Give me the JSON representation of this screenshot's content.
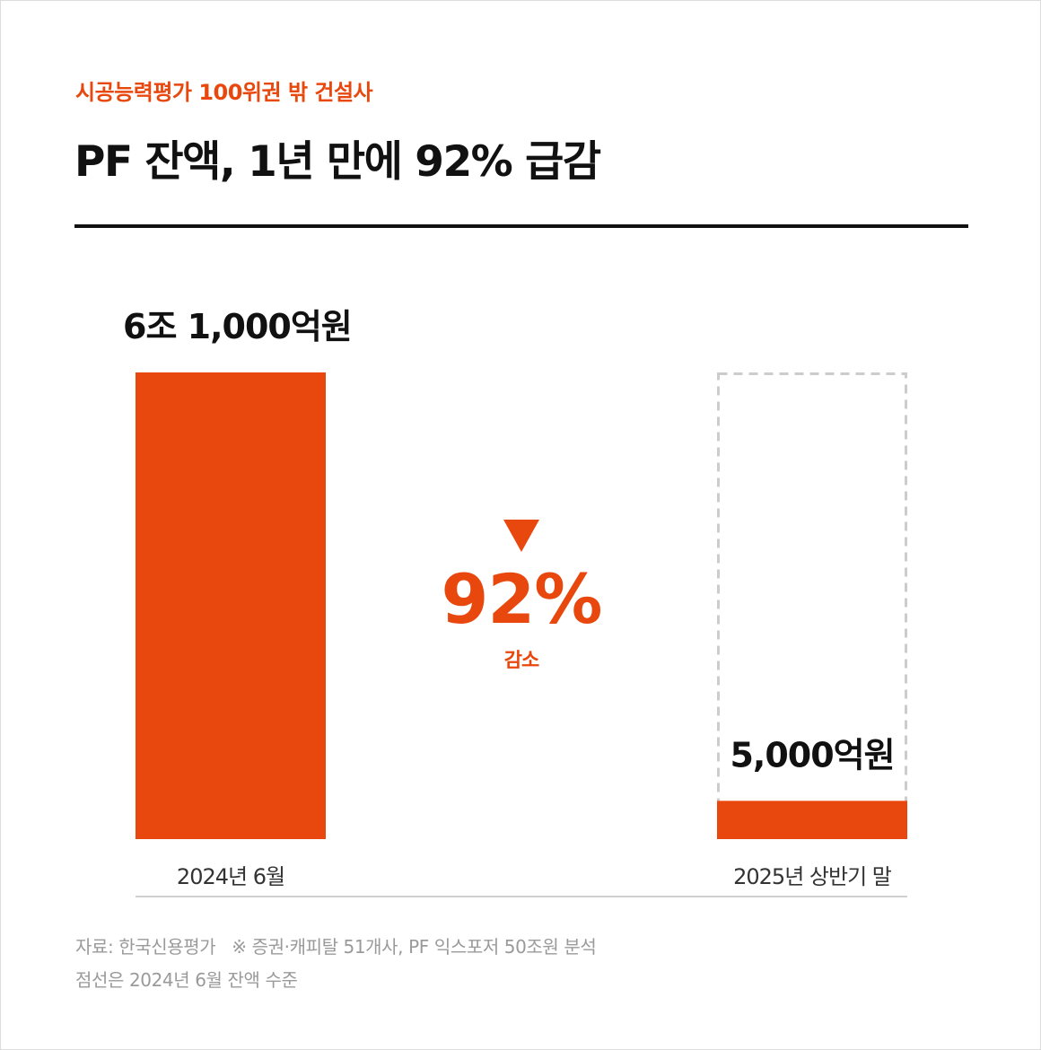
{
  "header": {
    "subtitle": "시공능력평가 100위권 밖 건설사",
    "title": "PF 잔액, 1년 만에 92% 급감"
  },
  "colors": {
    "accent": "#e8480e",
    "text": "#111111",
    "muted": "#9a9a9a",
    "reference_outline": "#cccccc"
  },
  "chart_data": {
    "type": "bar",
    "unit": "억원",
    "categories": [
      "2024년 6월",
      "2025년 상반기 말"
    ],
    "values": [
      61000,
      5000
    ],
    "value_labels": [
      "6조 1,000억원",
      "5,000억원"
    ],
    "reference_outline": {
      "category": "2025년 상반기 말",
      "value": 61000,
      "style": "dashed"
    },
    "annotation": {
      "icon": "down-triangle-icon",
      "value": "92%",
      "label": "감소"
    },
    "ylim": [
      0,
      61000
    ],
    "grid": false,
    "legend": "none"
  },
  "footer": {
    "source": "자료: 한국신용평가",
    "note_detail": "※ 증권·캐피탈 51개사, PF 익스포저 50조원 분석",
    "dashed_note": "점선은 2024년 6월 잔액 수준"
  }
}
